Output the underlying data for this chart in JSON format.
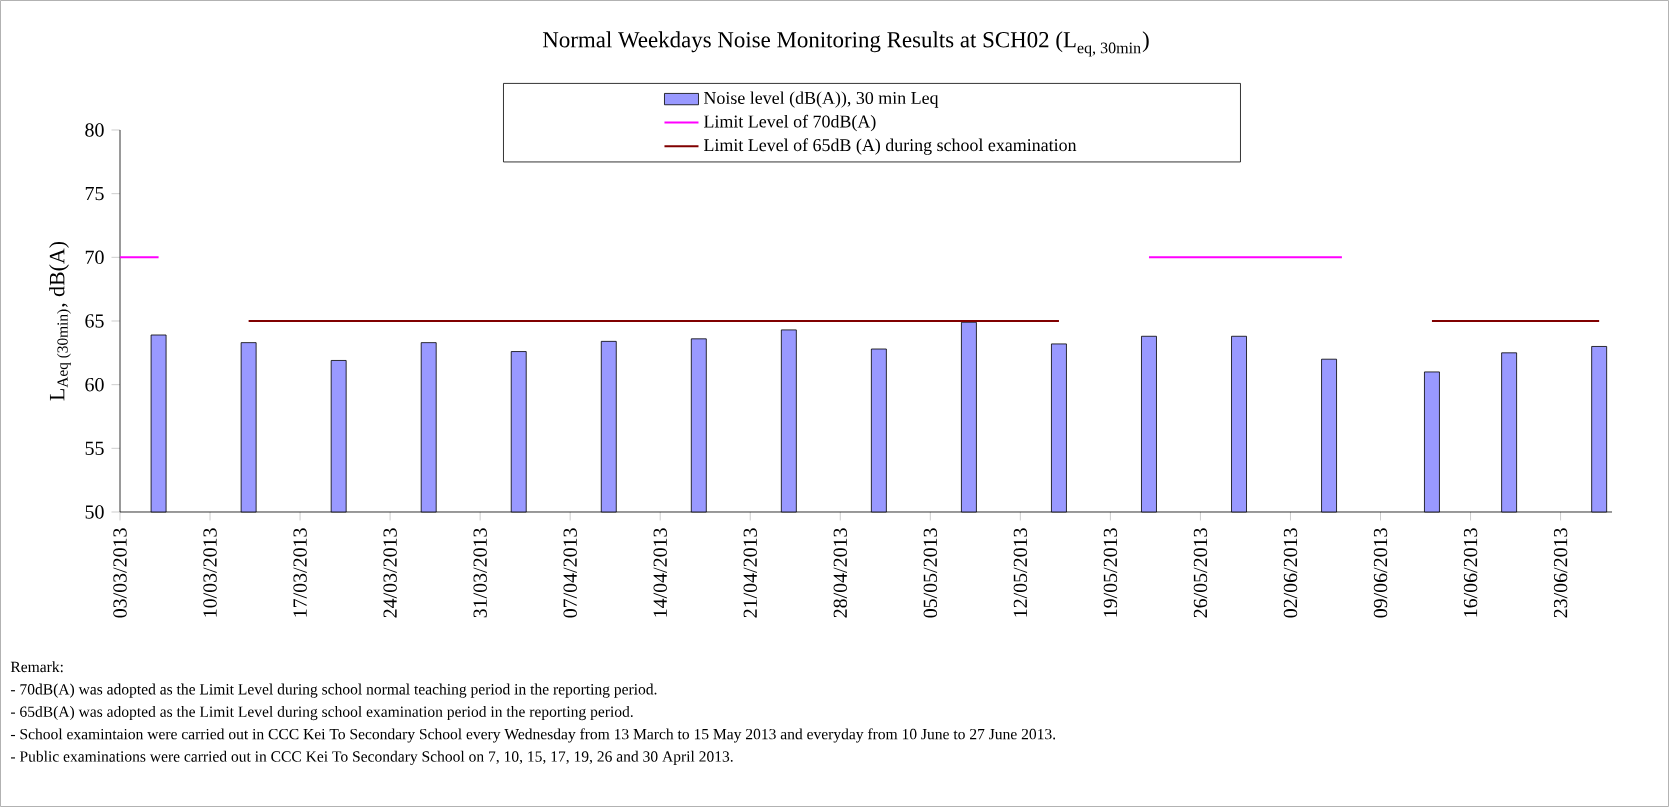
{
  "chart_data": {
    "type": "bar",
    "title": "\\text{Normal Weekdays Noise Monitoring Results at SCH02 (L}_{\\text{eq, 30min}}\\text{)}",
    "ylabel": "\\text{L}_{\\text{Aeq (30min)}}\\text{, dB(A)}",
    "series": [
      {
        "name": "Noise level (dB(A)), 30 min Leq",
        "color": "#9999ff",
        "x": [
          "2013-03-06",
          "2013-03-13",
          "2013-03-20",
          "2013-03-27",
          "2013-04-03",
          "2013-04-10",
          "2013-04-17",
          "2013-04-24",
          "2013-05-01",
          "2013-05-08",
          "2013-05-15",
          "2013-05-22",
          "2013-05-29",
          "2013-06-05",
          "2013-06-13",
          "2013-06-19",
          "2013-06-26"
        ],
        "values": [
          63.9,
          63.3,
          61.9,
          63.3,
          62.6,
          63.4,
          63.6,
          64.3,
          62.8,
          64.9,
          63.2,
          63.8,
          63.8,
          62.0,
          61.0,
          62.5,
          63.0
        ]
      },
      {
        "name": "Limit Level of 70dB(A)",
        "type": "line",
        "color": "#ff00ff",
        "x": [
          "2013-03-03",
          "2013-03-06",
          "2013-03-13",
          "2013-05-22",
          "2013-06-06"
        ],
        "values": [
          70,
          70,
          null,
          70,
          70
        ]
      },
      {
        "name": "Limit Level of 65dB (A) during school examination",
        "type": "line",
        "color": "#800000",
        "x": [
          "2013-03-13",
          "2013-05-15",
          "2013-05-22",
          "2013-06-13",
          "2013-06-26"
        ],
        "values": [
          65,
          65,
          null,
          65,
          65
        ]
      }
    ],
    "xlim": [
      "2013-03-03",
      "2013-06-27"
    ],
    "xticks": [
      {
        "value": "2013-03-03",
        "label": "03/03/2013"
      },
      {
        "value": "2013-03-10",
        "label": "10/03/2013"
      },
      {
        "value": "2013-03-17",
        "label": "17/03/2013"
      },
      {
        "value": "2013-03-24",
        "label": "24/03/2013"
      },
      {
        "value": "2013-03-31",
        "label": "31/03/2013"
      },
      {
        "value": "2013-04-07",
        "label": "07/04/2013"
      },
      {
        "value": "2013-04-14",
        "label": "14/04/2013"
      },
      {
        "value": "2013-04-21",
        "label": "21/04/2013"
      },
      {
        "value": "2013-04-28",
        "label": "28/04/2013"
      },
      {
        "value": "2013-05-05",
        "label": "05/05/2013"
      },
      {
        "value": "2013-05-12",
        "label": "12/05/2013"
      },
      {
        "value": "2013-05-19",
        "label": "19/05/2013"
      },
      {
        "value": "2013-05-26",
        "label": "26/05/2013"
      },
      {
        "value": "2013-06-02",
        "label": "02/06/2013"
      },
      {
        "value": "2013-06-09",
        "label": "09/06/2013"
      },
      {
        "value": "2013-06-16",
        "label": "16/06/2013"
      },
      {
        "value": "2013-06-23",
        "label": "23/06/2013"
      }
    ],
    "ylim": [
      50,
      80
    ],
    "yticks": [
      50,
      55,
      60,
      65,
      70,
      75,
      80
    ],
    "legend": "top",
    "annotations": [
      "Remark:",
      "- 70dB(A) was adopted as the Limit Level during school normal teaching period in the reporting period.",
      "- 65dB(A) was adopted as the Limit Level during school examination period in the reporting period.",
      "- School examintaion were carried out in CCC Kei To Secondary School every Wednesday from 13 March to 15 May 2013 and everyday from 10 June to 27 June 2013.",
      "- Public examinations were carried out in CCC Kei To Secondary School on 7, 10, 15, 17, 19, 26 and 30 April 2013."
    ]
  }
}
